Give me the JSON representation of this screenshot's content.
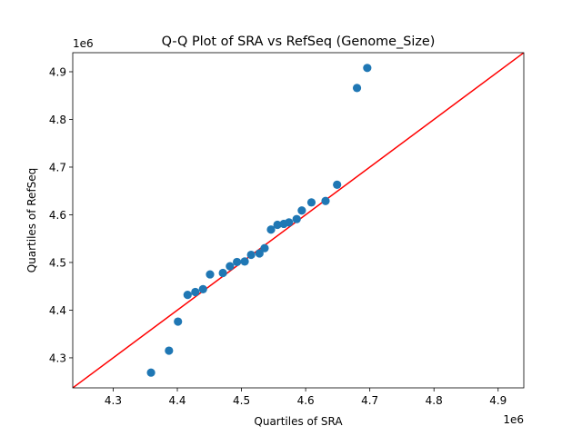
{
  "chart_data": {
    "type": "scatter",
    "title": "Q-Q Plot of SRA vs RefSeq (Genome_Size)",
    "xlabel": "Quartiles of SRA",
    "ylabel": "Quartiles of RefSeq",
    "x_offset_label": "1e6",
    "y_offset_label": "1e6",
    "xlim": [
      4.237,
      4.94
    ],
    "ylim": [
      4.237,
      4.94
    ],
    "x_ticks": [
      4.3,
      4.4,
      4.5,
      4.6,
      4.7,
      4.8,
      4.9
    ],
    "y_ticks": [
      4.3,
      4.4,
      4.5,
      4.6,
      4.7,
      4.8,
      4.9
    ],
    "x_tick_labels": [
      "4.3",
      "4.4",
      "4.5",
      "4.6",
      "4.7",
      "4.8",
      "4.9"
    ],
    "y_tick_labels": [
      "4.3",
      "4.4",
      "4.5",
      "4.6",
      "4.7",
      "4.8",
      "4.9"
    ],
    "grid": false,
    "point_color": "#1f77b4",
    "line_color": "#ff0000",
    "reference_line": {
      "from": [
        4.237,
        4.237
      ],
      "to": [
        4.94,
        4.94
      ]
    },
    "points": [
      {
        "x": 4.359,
        "y": 4.269
      },
      {
        "x": 4.387,
        "y": 4.315
      },
      {
        "x": 4.401,
        "y": 4.376
      },
      {
        "x": 4.416,
        "y": 4.432
      },
      {
        "x": 4.428,
        "y": 4.438
      },
      {
        "x": 4.44,
        "y": 4.444
      },
      {
        "x": 4.451,
        "y": 4.475
      },
      {
        "x": 4.471,
        "y": 4.478
      },
      {
        "x": 4.482,
        "y": 4.492
      },
      {
        "x": 4.493,
        "y": 4.501
      },
      {
        "x": 4.505,
        "y": 4.502
      },
      {
        "x": 4.515,
        "y": 4.516
      },
      {
        "x": 4.528,
        "y": 4.519
      },
      {
        "x": 4.536,
        "y": 4.53
      },
      {
        "x": 4.546,
        "y": 4.569
      },
      {
        "x": 4.556,
        "y": 4.579
      },
      {
        "x": 4.566,
        "y": 4.581
      },
      {
        "x": 4.574,
        "y": 4.584
      },
      {
        "x": 4.586,
        "y": 4.591
      },
      {
        "x": 4.594,
        "y": 4.609
      },
      {
        "x": 4.609,
        "y": 4.626
      },
      {
        "x": 4.631,
        "y": 4.629
      },
      {
        "x": 4.649,
        "y": 4.663
      },
      {
        "x": 4.68,
        "y": 4.866
      },
      {
        "x": 4.696,
        "y": 4.908
      }
    ]
  }
}
